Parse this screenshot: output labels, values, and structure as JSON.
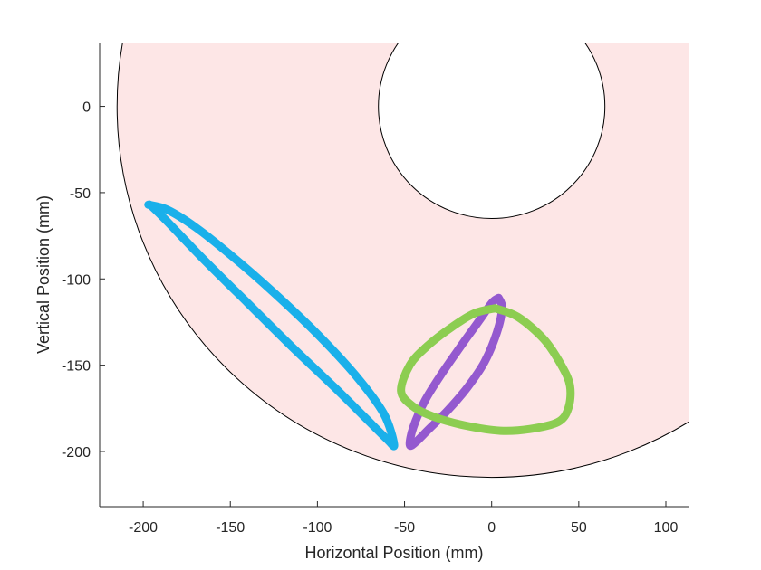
{
  "chart_data": {
    "type": "line",
    "title": "",
    "xlabel": "Horizontal Position (mm)",
    "ylabel": "Vertical Position (mm)",
    "xlim": [
      -225,
      113
    ],
    "ylim": [
      -232,
      37
    ],
    "xticks": [
      -200,
      -150,
      -100,
      -50,
      0,
      50,
      100
    ],
    "yticks": [
      0,
      -50,
      -100,
      -150,
      -200
    ],
    "xtick_labels": [
      "-200",
      "-150",
      "-100",
      "-50",
      "0",
      "50",
      "100"
    ],
    "ytick_labels": [
      "0",
      "-50",
      "-100",
      "-150",
      "-200"
    ],
    "grid": false,
    "legend": "none",
    "workspace": {
      "shape": "annulus",
      "center": [
        0,
        0
      ],
      "inner_radius": 65,
      "outer_radius": 215,
      "fill": "#fde6e6",
      "edge": "#000000"
    },
    "series": [
      {
        "color": "#1ab0ea",
        "x": [
          -197,
          -186,
          -170,
          -150,
          -125,
          -100,
          -78,
          -62,
          -56,
          -60,
          -72,
          -90,
          -115,
          -140,
          -165,
          -185,
          -195,
          -197
        ],
        "y": [
          -57,
          -60,
          -70,
          -86,
          -108,
          -132,
          -156,
          -178,
          -196,
          -193,
          -181,
          -163,
          -139,
          -114,
          -89,
          -68,
          -58,
          -57
        ]
      },
      {
        "color": "#9459cf",
        "x": [
          4,
          6,
          3,
          -4,
          -14,
          -25,
          -36,
          -44,
          -47,
          -45,
          -38,
          -28,
          -17,
          -7,
          0,
          4
        ],
        "y": [
          -111,
          -117,
          -131,
          -148,
          -163,
          -176,
          -187,
          -195,
          -196,
          -186,
          -170,
          -154,
          -138,
          -124,
          -114,
          -111
        ]
      },
      {
        "color": "#8ccd51",
        "x": [
          2,
          15,
          30,
          40,
          45,
          44,
          38,
          22,
          5,
          -15,
          -33,
          -45,
          -52,
          -47,
          -37,
          -23,
          -10,
          2
        ],
        "y": [
          -117,
          -122,
          -135,
          -150,
          -162,
          -175,
          -183,
          -187,
          -188,
          -185,
          -180,
          -174,
          -165,
          -150,
          -139,
          -128,
          -120,
          -117
        ]
      }
    ]
  }
}
